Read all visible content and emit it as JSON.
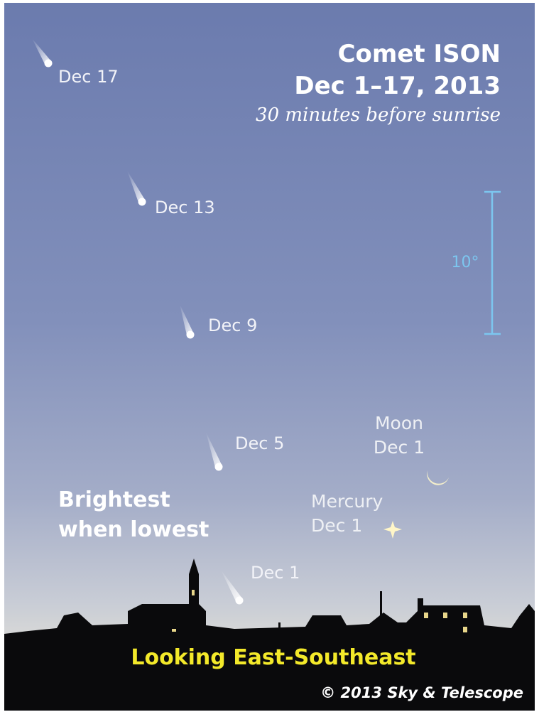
{
  "header": {
    "title": "Comet ISON",
    "dates": "Dec 1–17, 2013",
    "subtitle": "30 minutes before sunrise"
  },
  "scale_label": "10°",
  "comets": [
    {
      "label": "Dec 17"
    },
    {
      "label": "Dec 13"
    },
    {
      "label": "Dec 9"
    },
    {
      "label": "Dec 5"
    },
    {
      "label": "Dec 1"
    }
  ],
  "objects": [
    {
      "name": "Moon",
      "date": "Dec 1"
    },
    {
      "name": "Mercury",
      "date": "Dec 1"
    }
  ],
  "note": [
    "Brightest",
    "when lowest"
  ],
  "footer": {
    "direction": "Looking East-Southeast",
    "credit": "© 2013 Sky & Telescope"
  }
}
